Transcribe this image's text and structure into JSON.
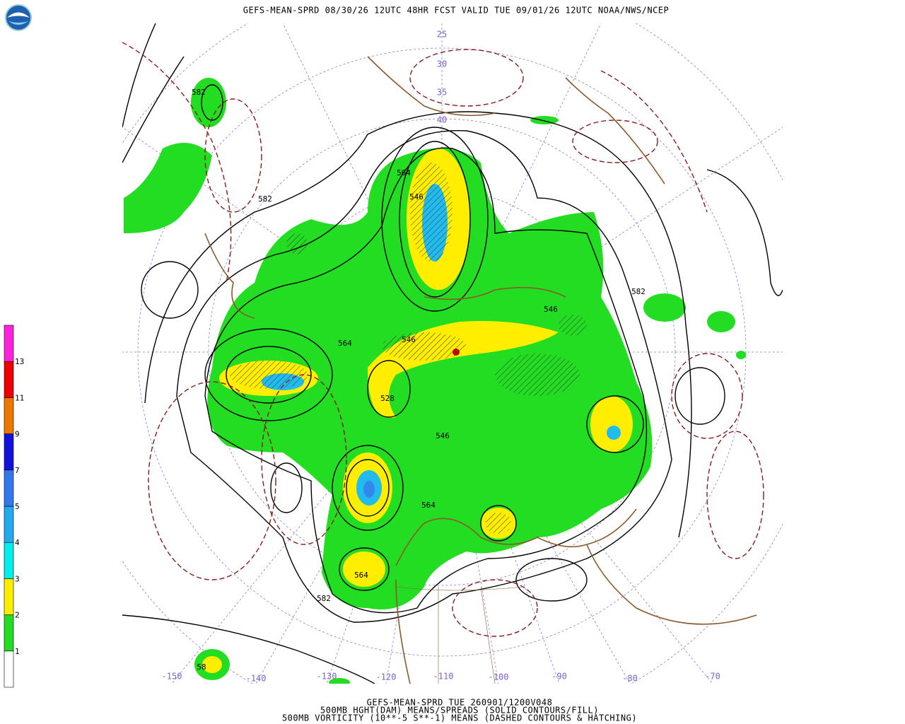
{
  "header": {
    "title": "GEFS-MEAN-SPRD 08/30/26 12UTC 48HR FCST VALID TUE 09/01/26 12UTC NOAA/NWS/NCEP"
  },
  "footer": {
    "lines": [
      "GEFS-MEAN-SPRD TUE 260901/1200V048",
      "500MB HGHT(DAM) MEANS/SPREADS (SOLID CONTOURS/FILL)",
      "500MB VORTICITY (10**-5 S**-1) MEANS (DASHED CONTOURS & HATCHING)"
    ]
  },
  "colorbar": {
    "labels": [
      "1",
      "2",
      "3",
      "4",
      "5",
      "7",
      "9",
      "11",
      "13"
    ]
  },
  "map": {
    "longitude_labels": [
      "-150",
      "-140",
      "-130",
      "-120",
      "-110",
      "-100",
      "-90",
      "-80",
      "-70"
    ],
    "latitude_labels": [
      "25",
      "30",
      "35",
      "40"
    ],
    "contour_labels": [
      "582",
      "582",
      "564",
      "546",
      "564",
      "546",
      "528",
      "546",
      "564",
      "582",
      "582",
      "546",
      "564",
      "58"
    ]
  }
}
